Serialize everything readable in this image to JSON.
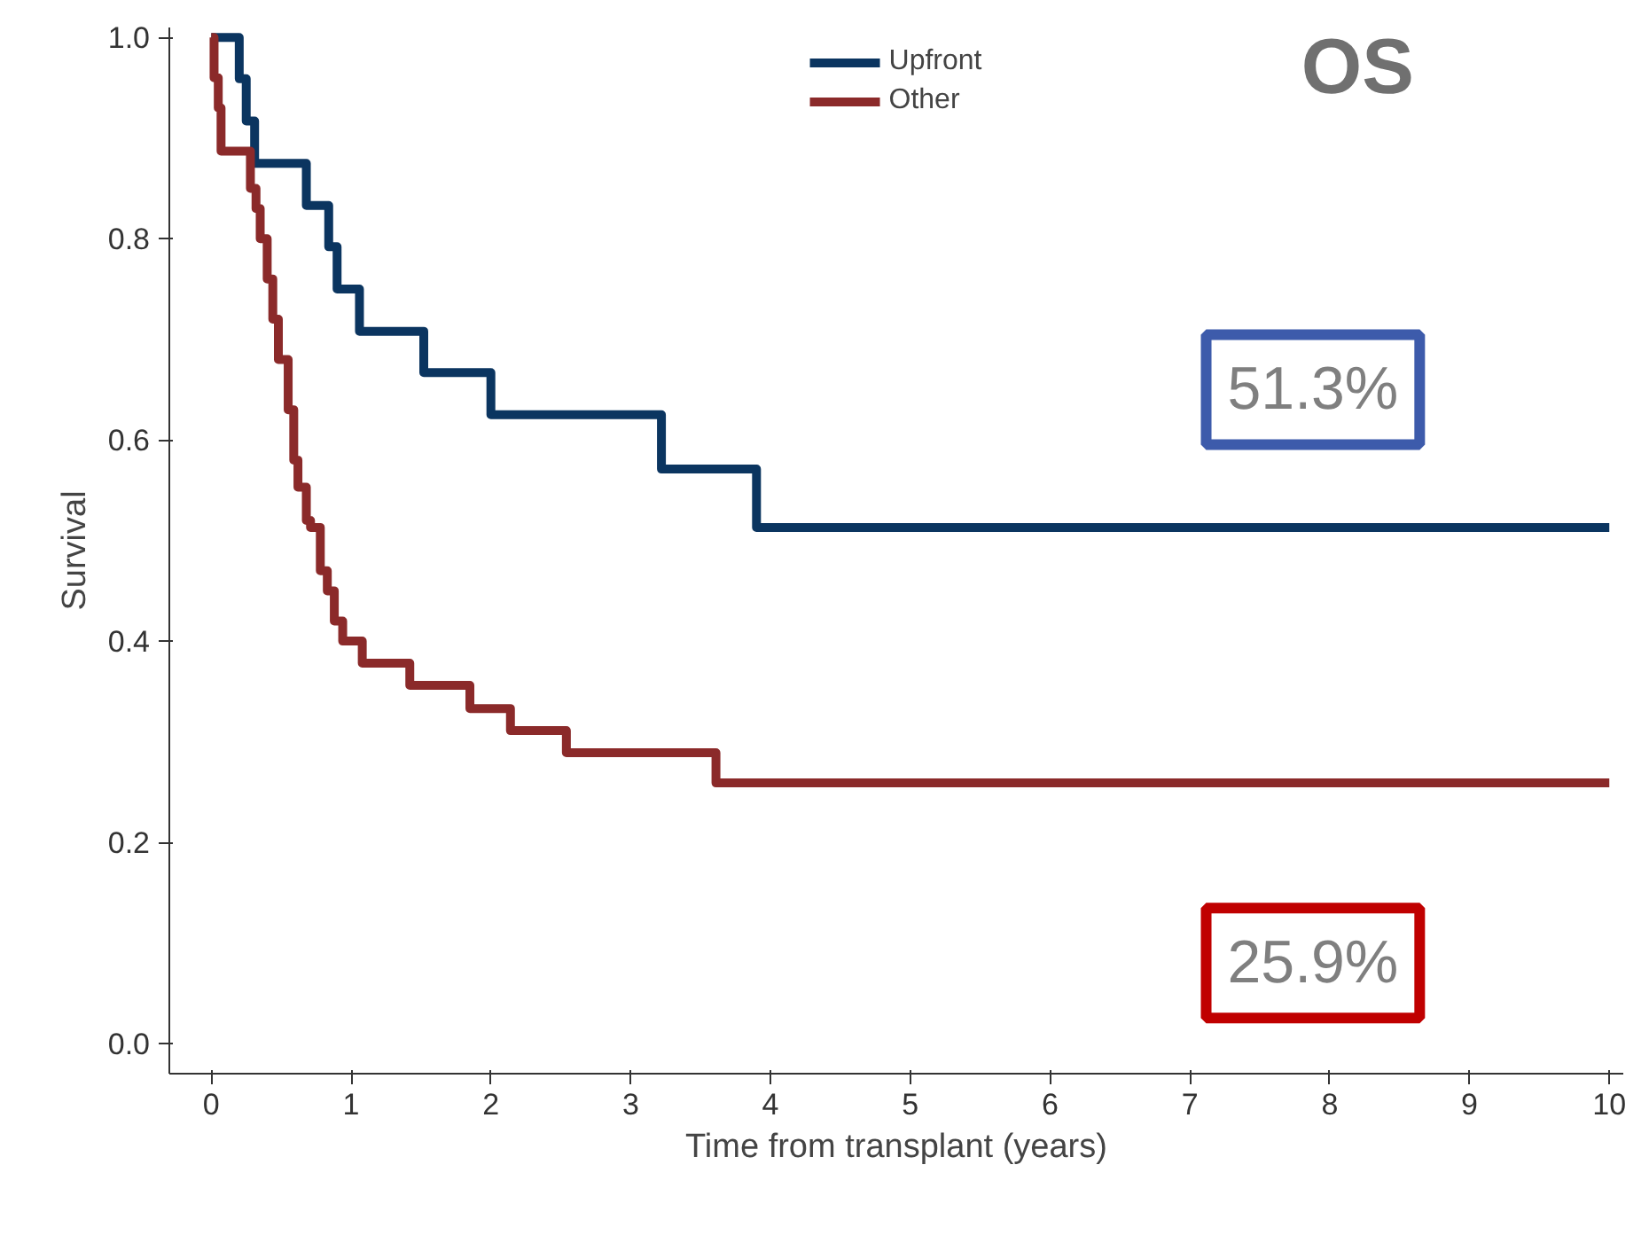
{
  "chart_data": {
    "type": "step",
    "xlabel": "Time from transplant (years)",
    "ylabel": "Survival",
    "xlim": [
      -0.3,
      10.1
    ],
    "ylim": [
      -0.03,
      1.01
    ],
    "xticks": [
      0,
      1,
      2,
      3,
      4,
      5,
      6,
      7,
      8,
      9,
      10
    ],
    "yticks": [
      {
        "value": 0,
        "label": "0.0"
      },
      0.2,
      0.4,
      0.6,
      0.8,
      {
        "value": 1,
        "label": "1.0"
      }
    ],
    "grid": false,
    "legend": "top",
    "line_style": "solid",
    "series": [
      {
        "name": "Upfront",
        "color": "#0b3560",
        "x": [
          0,
          0.2,
          0.25,
          0.31,
          0.68,
          0.84,
          0.9,
          1.06,
          1.52,
          2.0,
          3.22,
          3.9,
          10
        ],
        "values": [
          1.0,
          0.959,
          0.917,
          0.875,
          0.833,
          0.792,
          0.75,
          0.708,
          0.667,
          0.625,
          0.571,
          0.513,
          0.513
        ]
      },
      {
        "name": "Other",
        "color": "#8b2a2a",
        "x": [
          0,
          0.02,
          0.05,
          0.07,
          0.28,
          0.32,
          0.35,
          0.4,
          0.44,
          0.48,
          0.55,
          0.59,
          0.62,
          0.68,
          0.71,
          0.78,
          0.83,
          0.88,
          0.94,
          1.08,
          1.42,
          1.85,
          2.14,
          2.54,
          3.61,
          10
        ],
        "values": [
          1.0,
          0.96,
          0.93,
          0.887,
          0.85,
          0.83,
          0.8,
          0.76,
          0.72,
          0.68,
          0.63,
          0.58,
          0.553,
          0.52,
          0.513,
          0.47,
          0.45,
          0.42,
          0.4,
          0.378,
          0.356,
          0.333,
          0.311,
          0.289,
          0.259,
          0.259
        ]
      }
    ],
    "annotations": [
      "OS",
      "51.3%",
      "25.9%"
    ]
  }
}
